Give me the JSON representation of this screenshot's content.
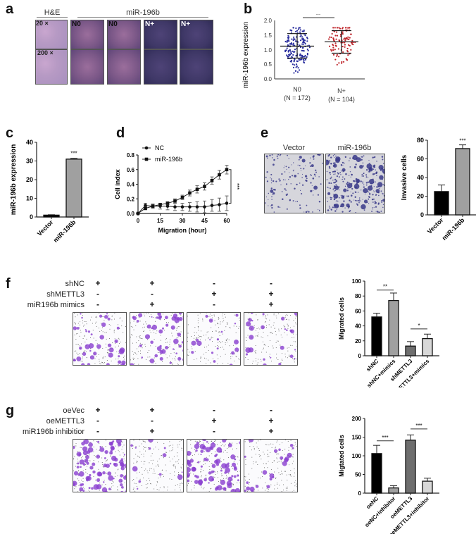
{
  "panels": {
    "a": {
      "letter": "a",
      "he_header": "H&E",
      "mir_header": "miR-196b",
      "mag_low": "20 ×",
      "mag_high": "200 ×",
      "tile_labels": [
        "N0",
        "N0",
        "N+",
        "N+"
      ]
    },
    "b": {
      "letter": "b"
    },
    "c": {
      "letter": "c"
    },
    "d": {
      "letter": "d"
    },
    "e": {
      "letter": "e",
      "image_labels": [
        "Vector",
        "miR-196b"
      ]
    },
    "f": {
      "letter": "f",
      "conditions": [
        {
          "label": "shNC",
          "signs": [
            "+",
            "+",
            "-",
            "-"
          ]
        },
        {
          "label": "shMETTL3",
          "signs": [
            "-",
            "-",
            "+",
            "+"
          ]
        },
        {
          "label": "miR196b  mimics",
          "signs": [
            "-",
            "+",
            "-",
            "+"
          ]
        }
      ]
    },
    "g": {
      "letter": "g",
      "conditions": [
        {
          "label": "oeVec",
          "signs": [
            "+",
            "+",
            "-",
            "-"
          ]
        },
        {
          "label": "oeMETTL3",
          "signs": [
            "-",
            "-",
            "+",
            "+"
          ]
        },
        {
          "label": "miR196b  inhibitior",
          "signs": [
            "-",
            "+",
            "-",
            "+"
          ]
        }
      ]
    }
  },
  "chart_data": [
    {
      "id": "b",
      "type": "scatter",
      "title": "",
      "ylabel": "miR-196b expression",
      "xlabel": "",
      "categories": [
        "N0\n(N = 172)",
        "N+\n(N = 104)"
      ],
      "ylim": [
        0.0,
        2.0
      ],
      "yticks": [
        "0.0",
        "0.5",
        "1.0",
        "1.5",
        "2.0"
      ],
      "series": [
        {
          "name": "N0",
          "n": 172,
          "color": "#2b2f9e",
          "mean": 1.12,
          "sd_low": 0.71,
          "sd_high": 1.55
        },
        {
          "name": "N+",
          "n": 104,
          "color": "#c0272d",
          "mean": 1.27,
          "sd_low": 0.88,
          "sd_high": 1.65
        }
      ],
      "annotations": [
        "**"
      ]
    },
    {
      "id": "c",
      "type": "bar",
      "ylabel": "miR-196b expression",
      "categories": [
        "Vector",
        "miR-196b"
      ],
      "values": [
        1,
        31
      ],
      "errors": [
        0.2,
        0.4
      ],
      "colors": [
        "#000000",
        "#a0a0a0"
      ],
      "ylim": [
        0,
        40
      ],
      "yticks": [
        "0",
        "10",
        "20",
        "30",
        "40"
      ],
      "annotations": [
        "***"
      ]
    },
    {
      "id": "d",
      "type": "line",
      "xlabel": "Migration (hour)",
      "ylabel": "Cell index",
      "x": [
        0,
        5,
        10,
        15,
        20,
        25,
        30,
        35,
        40,
        45,
        50,
        55,
        60
      ],
      "xticks": [
        "0",
        "15",
        "30",
        "45",
        "60"
      ],
      "ylim": [
        0.0,
        0.8
      ],
      "yticks": [
        "0.0",
        "0.2",
        "0.4",
        "0.6",
        "0.8"
      ],
      "series": [
        {
          "name": "NC",
          "marker": "circle",
          "values": [
            0.0,
            0.11,
            0.1,
            0.1,
            0.1,
            0.09,
            0.09,
            0.09,
            0.09,
            0.09,
            0.11,
            0.12,
            0.14
          ],
          "errors": [
            0.0,
            0.03,
            0.03,
            0.04,
            0.05,
            0.05,
            0.05,
            0.06,
            0.07,
            0.08,
            0.08,
            0.09,
            0.1
          ]
        },
        {
          "name": "miR-196b",
          "marker": "square",
          "values": [
            0.0,
            0.07,
            0.1,
            0.12,
            0.14,
            0.17,
            0.22,
            0.28,
            0.33,
            0.37,
            0.45,
            0.53,
            0.6
          ],
          "errors": [
            0.0,
            0.02,
            0.02,
            0.02,
            0.02,
            0.03,
            0.03,
            0.04,
            0.05,
            0.05,
            0.05,
            0.06,
            0.06
          ]
        }
      ],
      "legend_position": "upper-left",
      "annotations": [
        "***"
      ]
    },
    {
      "id": "e",
      "type": "bar",
      "ylabel": "Invasive cells",
      "categories": [
        "Vector",
        "miR-196b"
      ],
      "values": [
        25,
        71
      ],
      "errors": [
        7,
        4
      ],
      "colors": [
        "#000000",
        "#a0a0a0"
      ],
      "ylim": [
        0,
        80
      ],
      "yticks": [
        "0",
        "20",
        "40",
        "60",
        "80"
      ],
      "annotations": [
        "***"
      ]
    },
    {
      "id": "f",
      "type": "bar",
      "ylabel": "Migrated cells",
      "categories": [
        "shNC",
        "shNC+mimics",
        "shMETTL3",
        "shMETTL3+mimics"
      ],
      "values": [
        52,
        74,
        13,
        23
      ],
      "errors": [
        5,
        10,
        6,
        6
      ],
      "colors": [
        "#000000",
        "#a0a0a0",
        "#6e6e6e",
        "#d8d8d8"
      ],
      "ylim": [
        0,
        100
      ],
      "yticks": [
        "0",
        "20",
        "40",
        "60",
        "80",
        "100"
      ],
      "annotations": [
        "**",
        "*"
      ]
    },
    {
      "id": "g",
      "type": "bar",
      "ylabel": "Migtated cells",
      "categories": [
        "oeNC",
        "oeNC+inhibitor",
        "oeMETTL3",
        "oeMETTL3+inhibitor"
      ],
      "values": [
        106,
        14,
        142,
        32
      ],
      "errors": [
        22,
        6,
        14,
        8
      ],
      "colors": [
        "#000000",
        "#a0a0a0",
        "#6e6e6e",
        "#d8d8d8"
      ],
      "ylim": [
        0,
        200
      ],
      "yticks": [
        "0",
        "50",
        "100",
        "150",
        "200"
      ],
      "annotations": [
        "***",
        "***"
      ]
    }
  ]
}
